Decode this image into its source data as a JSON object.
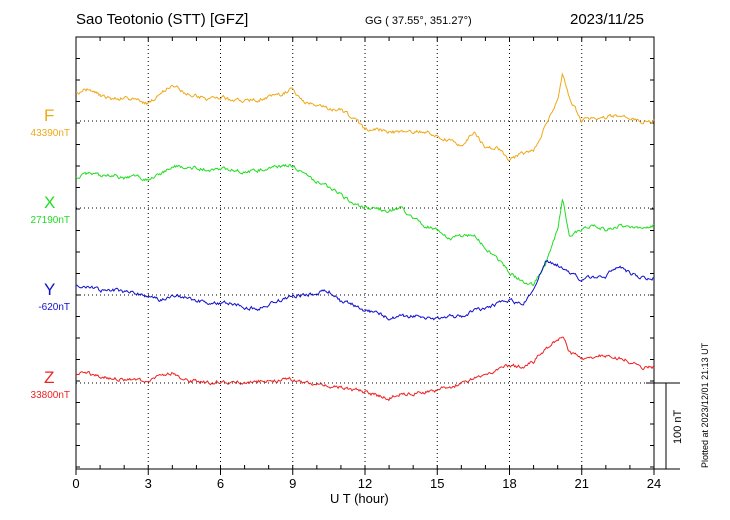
{
  "header": {
    "station": "Sao Teotonio (STT)  [GFZ]",
    "coords": "GG ( 37.55°, 351.27°)",
    "date": "2023/11/25"
  },
  "plotted_note": "Plotted at 2023/12/01 21:13 UT",
  "scale_label": "100 nT",
  "chart_data": {
    "type": "line",
    "xlabel": "U T (hour)",
    "xlim": [
      0,
      24
    ],
    "x_ticks": [
      0,
      3,
      6,
      9,
      12,
      15,
      18,
      21,
      24
    ],
    "grid": true,
    "scale_nT": 100,
    "series": [
      {
        "name": "F",
        "baseline_label": "43390nT",
        "color": "#f0a818",
        "baseline_offset_nT": 0,
        "x": [
          0,
          0.5,
          1,
          1.5,
          2,
          2.5,
          3,
          3.5,
          4,
          4.5,
          5,
          5.5,
          6,
          6.5,
          7,
          7.5,
          8,
          8.5,
          9,
          9.5,
          10,
          10.5,
          11,
          11.5,
          12,
          12.5,
          13,
          13.5,
          14,
          14.5,
          15,
          15.5,
          16,
          16.5,
          17,
          17.5,
          18,
          18.5,
          19,
          19.5,
          20,
          20.2,
          20.5,
          21,
          21.5,
          22,
          22.5,
          23,
          23.5,
          24
        ],
        "y": [
          32,
          37,
          30,
          25,
          27,
          24,
          20,
          31,
          44,
          33,
          30,
          25,
          28,
          24,
          24,
          25,
          28,
          30,
          38,
          20,
          20,
          15,
          12,
          4,
          -10,
          -10,
          -12,
          -14,
          -12,
          -12,
          -18,
          -22,
          -30,
          -12,
          -30,
          -32,
          -45,
          -38,
          -35,
          -5,
          25,
          55,
          25,
          0,
          4,
          5,
          7,
          4,
          -2,
          0
        ]
      },
      {
        "name": "X",
        "baseline_label": "27190nT",
        "color": "#22dd22",
        "baseline_offset_nT": 0,
        "x": [
          0,
          0.5,
          1,
          1.5,
          2,
          2.5,
          3,
          3.5,
          4,
          4.5,
          5,
          5.5,
          6,
          6.5,
          7,
          7.5,
          8,
          8.5,
          9,
          9.5,
          10,
          10.5,
          11,
          11.5,
          12,
          12.5,
          13,
          13.5,
          14,
          14.5,
          15,
          15.5,
          16,
          16.5,
          17,
          17.5,
          18,
          18.5,
          19,
          19.5,
          20,
          20.2,
          20.5,
          21,
          21.5,
          22,
          22.5,
          23,
          23.5,
          24
        ],
        "y": [
          35,
          40,
          38,
          38,
          35,
          36,
          33,
          38,
          50,
          48,
          47,
          44,
          46,
          44,
          42,
          44,
          46,
          48,
          50,
          38,
          30,
          25,
          15,
          5,
          0,
          -2,
          -3,
          0,
          -10,
          -20,
          -25,
          -35,
          -33,
          -30,
          -45,
          -60,
          -75,
          -85,
          -90,
          -65,
          -25,
          10,
          -35,
          -25,
          -20,
          -25,
          -20,
          -22,
          -25,
          -20
        ]
      },
      {
        "name": "Y",
        "baseline_label": "-620nT",
        "color": "#1010cc",
        "baseline_offset_nT": 0,
        "x": [
          0,
          0.5,
          1,
          1.5,
          2,
          2.5,
          3,
          3.5,
          4,
          4.5,
          5,
          5.5,
          6,
          6.5,
          7,
          7.5,
          8,
          8.5,
          9,
          9.5,
          10,
          10.5,
          11,
          11.5,
          12,
          12.5,
          13,
          13.5,
          14,
          14.5,
          15,
          15.5,
          16,
          16.5,
          17,
          17.5,
          18,
          18.5,
          19,
          19.5,
          20,
          20.2,
          20.5,
          21,
          21.5,
          22,
          22.5,
          23,
          23.5,
          24
        ],
        "y": [
          10,
          10,
          5,
          6,
          4,
          2,
          -2,
          -6,
          0,
          -3,
          -6,
          -10,
          -10,
          -10,
          -14,
          -16,
          -12,
          -6,
          -2,
          0,
          2,
          4,
          -8,
          -10,
          -18,
          -20,
          -28,
          -25,
          -24,
          -26,
          -28,
          -25,
          -25,
          -18,
          -15,
          -10,
          -5,
          -12,
          5,
          40,
          35,
          30,
          25,
          18,
          20,
          22,
          35,
          25,
          20,
          20
        ]
      },
      {
        "name": "Z",
        "baseline_label": "33800nT",
        "color": "#ee2222",
        "baseline_offset_nT": 0,
        "x": [
          0,
          0.5,
          1,
          1.5,
          2,
          2.5,
          3,
          3.5,
          4,
          4.5,
          5,
          5.5,
          6,
          6.5,
          7,
          7.5,
          8,
          8.5,
          9,
          9.5,
          10,
          10.5,
          11,
          11.5,
          12,
          12.5,
          13,
          13.5,
          14,
          14.5,
          15,
          15.5,
          16,
          16.5,
          17,
          17.5,
          18,
          18.5,
          19,
          19.5,
          20,
          20.2,
          20.5,
          21,
          21.5,
          22,
          22.5,
          23,
          23.5,
          24
        ],
        "y": [
          10,
          12,
          8,
          5,
          4,
          3,
          2,
          8,
          12,
          5,
          2,
          0,
          2,
          0,
          0,
          2,
          2,
          3,
          5,
          0,
          -2,
          -3,
          -5,
          -8,
          -10,
          -15,
          -18,
          -12,
          -12,
          -10,
          -8,
          -5,
          0,
          5,
          12,
          15,
          20,
          18,
          25,
          40,
          50,
          55,
          35,
          28,
          30,
          32,
          30,
          25,
          18,
          18
        ]
      }
    ]
  }
}
